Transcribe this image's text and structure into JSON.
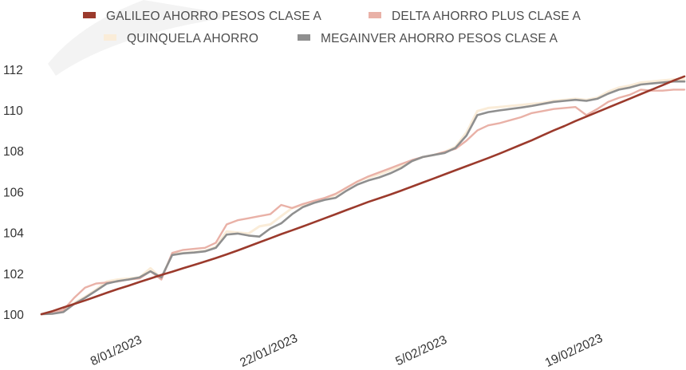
{
  "chart_data": {
    "type": "line",
    "x_dates": [
      "2023-01-01",
      "2023-01-02",
      "2023-01-03",
      "2023-01-04",
      "2023-01-05",
      "2023-01-06",
      "2023-01-07",
      "2023-01-08",
      "2023-01-09",
      "2023-01-10",
      "2023-01-11",
      "2023-01-12",
      "2023-01-13",
      "2023-01-14",
      "2023-01-15",
      "2023-01-16",
      "2023-01-17",
      "2023-01-18",
      "2023-01-19",
      "2023-01-20",
      "2023-01-21",
      "2023-01-22",
      "2023-01-23",
      "2023-01-24",
      "2023-01-25",
      "2023-01-26",
      "2023-01-27",
      "2023-01-28",
      "2023-01-29",
      "2023-01-30",
      "2023-01-31",
      "2023-02-01",
      "2023-02-02",
      "2023-02-03",
      "2023-02-04",
      "2023-02-05",
      "2023-02-06",
      "2023-02-07",
      "2023-02-08",
      "2023-02-09",
      "2023-02-10",
      "2023-02-11",
      "2023-02-12",
      "2023-02-13",
      "2023-02-14",
      "2023-02-15",
      "2023-02-16",
      "2023-02-17",
      "2023-02-18",
      "2023-02-19",
      "2023-02-20",
      "2023-02-21",
      "2023-02-22",
      "2023-02-23",
      "2023-02-24",
      "2023-02-25",
      "2023-02-26",
      "2023-02-27",
      "2023-02-28",
      "2023-03-01"
    ],
    "x_ticks": [
      "8/01/2023",
      "22/01/2023",
      "5/02/2023",
      "19/02/2023"
    ],
    "x_tick_dates": [
      "2023-01-08",
      "2023-01-22",
      "2023-02-05",
      "2023-02-19"
    ],
    "y_ticks": [
      100,
      102,
      104,
      106,
      108,
      110,
      112
    ],
    "ylim": [
      100,
      112.5
    ],
    "grid": false,
    "legend_position": "top",
    "series": [
      {
        "name": "GALILEO AHORRO PESOS CLASE A",
        "color": "#9b3a2c",
        "values": [
          100.0,
          100.15,
          100.33,
          100.5,
          100.67,
          100.86,
          101.05,
          101.23,
          101.4,
          101.58,
          101.75,
          101.92,
          102.08,
          102.25,
          102.41,
          102.58,
          102.75,
          102.93,
          103.12,
          103.32,
          103.52,
          103.72,
          103.92,
          104.11,
          104.3,
          104.5,
          104.7,
          104.9,
          105.1,
          105.3,
          105.5,
          105.68,
          105.86,
          106.05,
          106.25,
          106.45,
          106.65,
          106.85,
          107.05,
          107.25,
          107.45,
          107.65,
          107.86,
          108.08,
          108.3,
          108.52,
          108.76,
          109.0,
          109.22,
          109.46,
          109.68,
          109.9,
          110.12,
          110.34,
          110.56,
          110.78,
          111.0,
          111.22,
          111.44,
          111.65
        ]
      },
      {
        "name": "DELTA AHORRO PLUS CLASE A",
        "color": "#e9b1a7",
        "values": [
          100.0,
          100.05,
          100.2,
          100.8,
          101.3,
          101.5,
          101.55,
          101.6,
          101.7,
          101.75,
          102.1,
          101.7,
          103.0,
          103.15,
          103.2,
          103.25,
          103.5,
          104.4,
          104.6,
          104.7,
          104.8,
          104.9,
          105.35,
          105.2,
          105.4,
          105.55,
          105.7,
          105.9,
          106.2,
          106.5,
          106.75,
          106.95,
          107.15,
          107.35,
          107.55,
          107.7,
          107.8,
          107.95,
          108.1,
          108.5,
          109.0,
          109.25,
          109.35,
          109.5,
          109.65,
          109.85,
          109.95,
          110.05,
          110.1,
          110.15,
          109.75,
          110.05,
          110.4,
          110.6,
          110.75,
          111.0,
          110.95,
          110.95,
          111.0,
          111.0
        ]
      },
      {
        "name": "QUINQUELA AHORRO",
        "color": "#faecd8",
        "values": [
          100.0,
          100.03,
          100.15,
          100.55,
          100.85,
          101.2,
          101.6,
          101.7,
          101.75,
          101.8,
          102.25,
          101.75,
          102.95,
          103.0,
          103.05,
          103.1,
          103.3,
          104.05,
          104.0,
          103.95,
          104.3,
          104.4,
          104.8,
          105.2,
          105.35,
          105.5,
          105.65,
          105.85,
          106.2,
          106.5,
          106.7,
          106.85,
          107.05,
          107.25,
          107.5,
          107.7,
          107.8,
          107.95,
          108.2,
          108.9,
          109.95,
          110.1,
          110.15,
          110.2,
          110.25,
          110.3,
          110.35,
          110.45,
          110.5,
          110.55,
          110.5,
          110.6,
          110.9,
          111.1,
          111.2,
          111.35,
          111.4,
          111.45,
          111.5,
          111.5
        ]
      },
      {
        "name": "MEGAINVER AHORRO PESOS CLASE A",
        "color": "#8f8f8f",
        "values": [
          100.0,
          100.02,
          100.1,
          100.5,
          100.8,
          101.15,
          101.5,
          101.62,
          101.7,
          101.8,
          102.1,
          101.8,
          102.9,
          102.98,
          103.02,
          103.08,
          103.25,
          103.9,
          103.95,
          103.85,
          103.8,
          104.2,
          104.45,
          104.9,
          105.25,
          105.45,
          105.6,
          105.7,
          106.05,
          106.35,
          106.55,
          106.7,
          106.9,
          107.15,
          107.5,
          107.7,
          107.8,
          107.9,
          108.15,
          108.75,
          109.75,
          109.9,
          109.98,
          110.05,
          110.12,
          110.2,
          110.3,
          110.4,
          110.45,
          110.5,
          110.45,
          110.55,
          110.8,
          111.0,
          111.1,
          111.25,
          111.3,
          111.35,
          111.4,
          111.4
        ]
      }
    ]
  }
}
